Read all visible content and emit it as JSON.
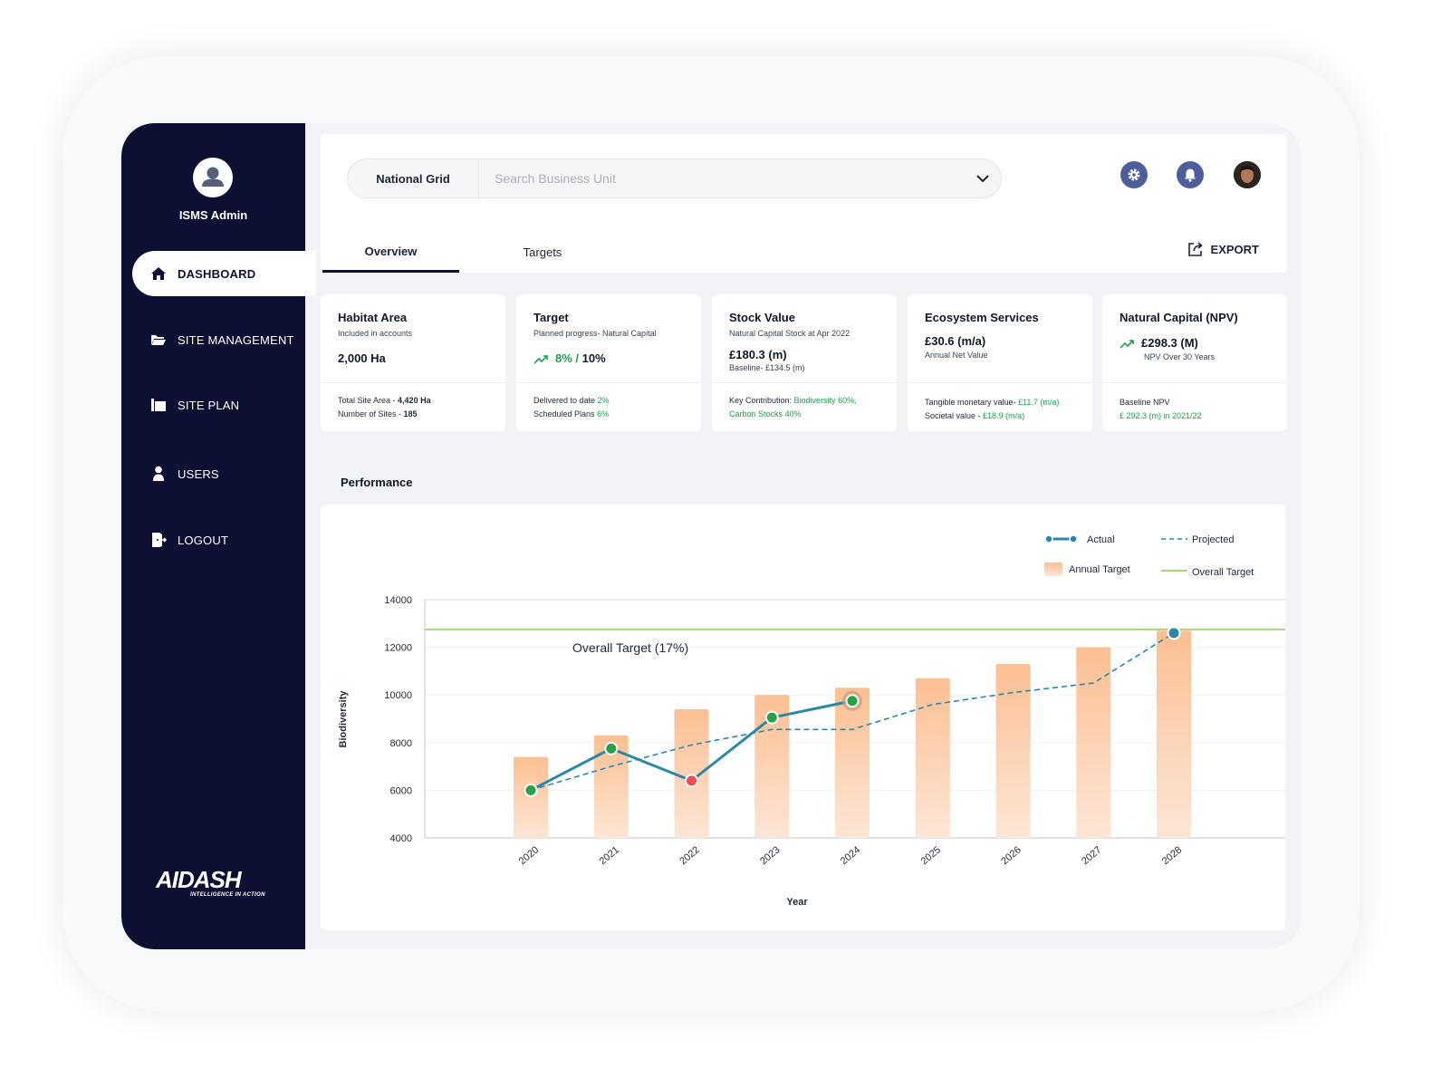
{
  "sidebar": {
    "user_name": "ISMS Admin",
    "items": [
      {
        "label": "DASHBOARD",
        "icon": "home-icon",
        "active": true
      },
      {
        "label": "SITE MANAGEMENT",
        "icon": "folder-icon",
        "active": false
      },
      {
        "label": "SITE PLAN",
        "icon": "map-icon",
        "active": false
      },
      {
        "label": "USERS",
        "icon": "user-icon",
        "active": false
      },
      {
        "label": "LOGOUT",
        "icon": "logout-icon",
        "active": false
      }
    ],
    "logo_text": "AIDASH",
    "logo_tagline": "INTELLIGENCE IN ACTION"
  },
  "header": {
    "business_unit": "National Grid",
    "search_placeholder": "Search Business Unit",
    "tabs": [
      {
        "label": "Overview",
        "active": true
      },
      {
        "label": "Targets",
        "active": false
      }
    ],
    "export_label": "EXPORT"
  },
  "cards": [
    {
      "title": "Habitat Area",
      "subtitle": "Included in accounts",
      "value": "2,000 Ha",
      "line1_label": "Total Site Area - ",
      "line1_value": "4,420 Ha",
      "line2_label": "Number of Sites - ",
      "line2_value": "185"
    },
    {
      "title": "Target",
      "subtitle": "Planned progress- Natural Capital",
      "value_green": "8%",
      "value_sep": " / ",
      "value_dark": "10%",
      "line1_label": "Delivered to date ",
      "line1_value": "2%",
      "line2_label": "Scheduled Plans ",
      "line2_value": "6%"
    },
    {
      "title": "Stock Value",
      "subtitle": "Natural Capital Stock at Apr 2022",
      "value": "£180.3 (m)",
      "note": "Baseline- £134.5 (m)",
      "line1_label": "Key Contribution: ",
      "line1_value": "Biodiversity 60%,",
      "line2_value": "Carbon Stocks 40%"
    },
    {
      "title": "Ecosystem Services",
      "value": "£30.6 (m/a)",
      "note": "Annual Net Value",
      "line1_label": "Tangible monetary value- ",
      "line1_value": "£11.7 (m/a)",
      "line2_label": "Societal value - ",
      "line2_value": "£18.9 (m/a)"
    },
    {
      "title": "Natural Capital (NPV)",
      "value": "£298.3 (M)",
      "note": "NPV Over 30 Years",
      "line1_label": "Baseline NPV",
      "line2_value": "£ 292.3 (m) in 2021/22"
    }
  ],
  "performance": {
    "title": "Performance"
  },
  "chart_data": {
    "type": "bar",
    "categories": [
      "2020",
      "2021",
      "2022",
      "2023",
      "2024",
      "2025",
      "2026",
      "2027",
      "2028"
    ],
    "xlabel": "Year",
    "ylabel": "Biodiversity",
    "ylim": [
      4000,
      14000
    ],
    "yticks": [
      4000,
      6000,
      8000,
      10000,
      12000,
      14000
    ],
    "series": [
      {
        "name": "Annual Target",
        "kind": "bar",
        "color": "#fbbf92",
        "values": [
          7400,
          8300,
          9400,
          10000,
          10300,
          10700,
          11300,
          12000,
          12700
        ]
      },
      {
        "name": "Actual",
        "kind": "line",
        "color": "#2b87a6",
        "values": [
          6000,
          7750,
          6400,
          9050,
          9750,
          null,
          null,
          null,
          null
        ],
        "marker_colors": [
          "#2aa04a",
          "#2aa04a",
          "#ee4b55",
          "#2aa04a",
          "#2aa04a"
        ]
      },
      {
        "name": "Projected",
        "kind": "dashed-line",
        "color": "#2b87a6",
        "values": [
          6000,
          7000,
          7900,
          8550,
          8550,
          9600,
          10100,
          10500,
          12600
        ]
      }
    ],
    "overall_target": {
      "name": "Overall Target",
      "value": 12750,
      "label": "Overall Target (17%)",
      "color": "#a6d97a"
    },
    "legend": [
      {
        "name": "Actual",
        "kind": "line"
      },
      {
        "name": "Projected",
        "kind": "dashed-line"
      },
      {
        "name": "Annual Target",
        "kind": "bar"
      },
      {
        "name": "Overall Target",
        "kind": "target-line"
      }
    ],
    "legend_position": "top-right",
    "grid": true
  }
}
